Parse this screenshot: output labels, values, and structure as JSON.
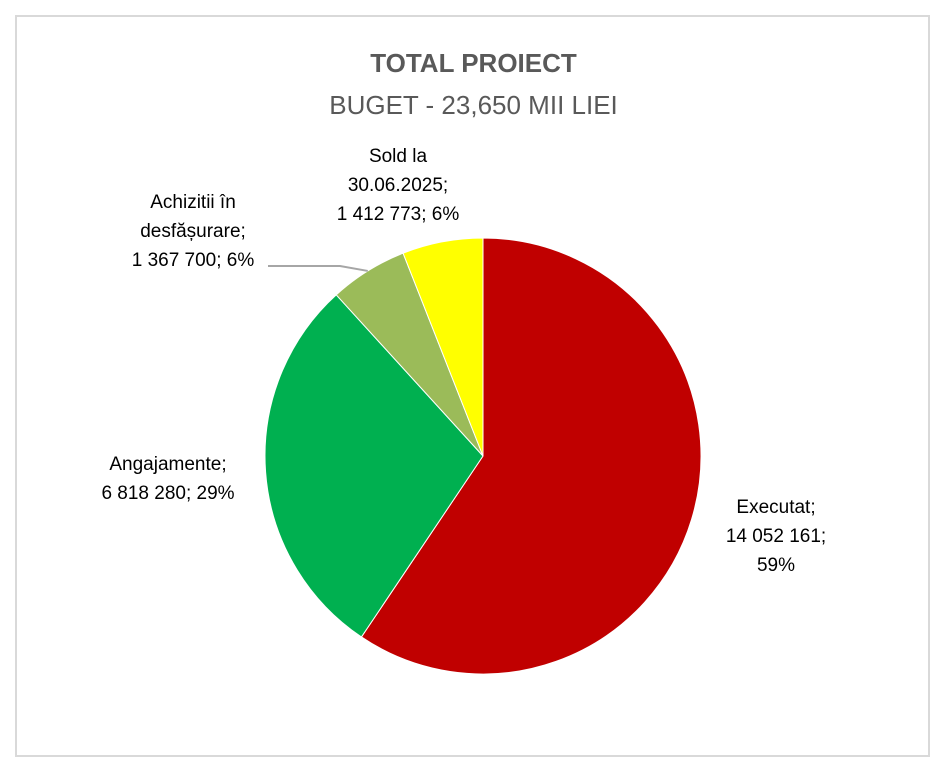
{
  "chart_data": {
    "type": "pie",
    "title": "TOTAL PROIECT",
    "subtitle": "BUGET - 23,650 MII LIEI",
    "slices": [
      {
        "name": "Executat",
        "value": 14052161,
        "percent": "59%",
        "color": "#c00000",
        "label_lines": [
          "Executat;",
          "14 052 161;",
          "59%"
        ]
      },
      {
        "name": "Angajamente",
        "value": 6818280,
        "percent": "29%",
        "color": "#00b050",
        "label_lines": [
          "Angajamente;",
          "6 818 280; 29%"
        ]
      },
      {
        "name": "Achizitii în desfășurare",
        "value": 1367700,
        "percent": "6%",
        "color": "#9bbb59",
        "label_lines": [
          "Achizitii în",
          "desfășurare;",
          "1 367 700; 6%"
        ]
      },
      {
        "name": "Sold la 30.06.2025",
        "value": 1412773,
        "percent": "6%",
        "color": "#ffff00",
        "label_lines": [
          "Sold la",
          "30.06.2025;",
          "1 412 773; 6%"
        ]
      }
    ]
  }
}
